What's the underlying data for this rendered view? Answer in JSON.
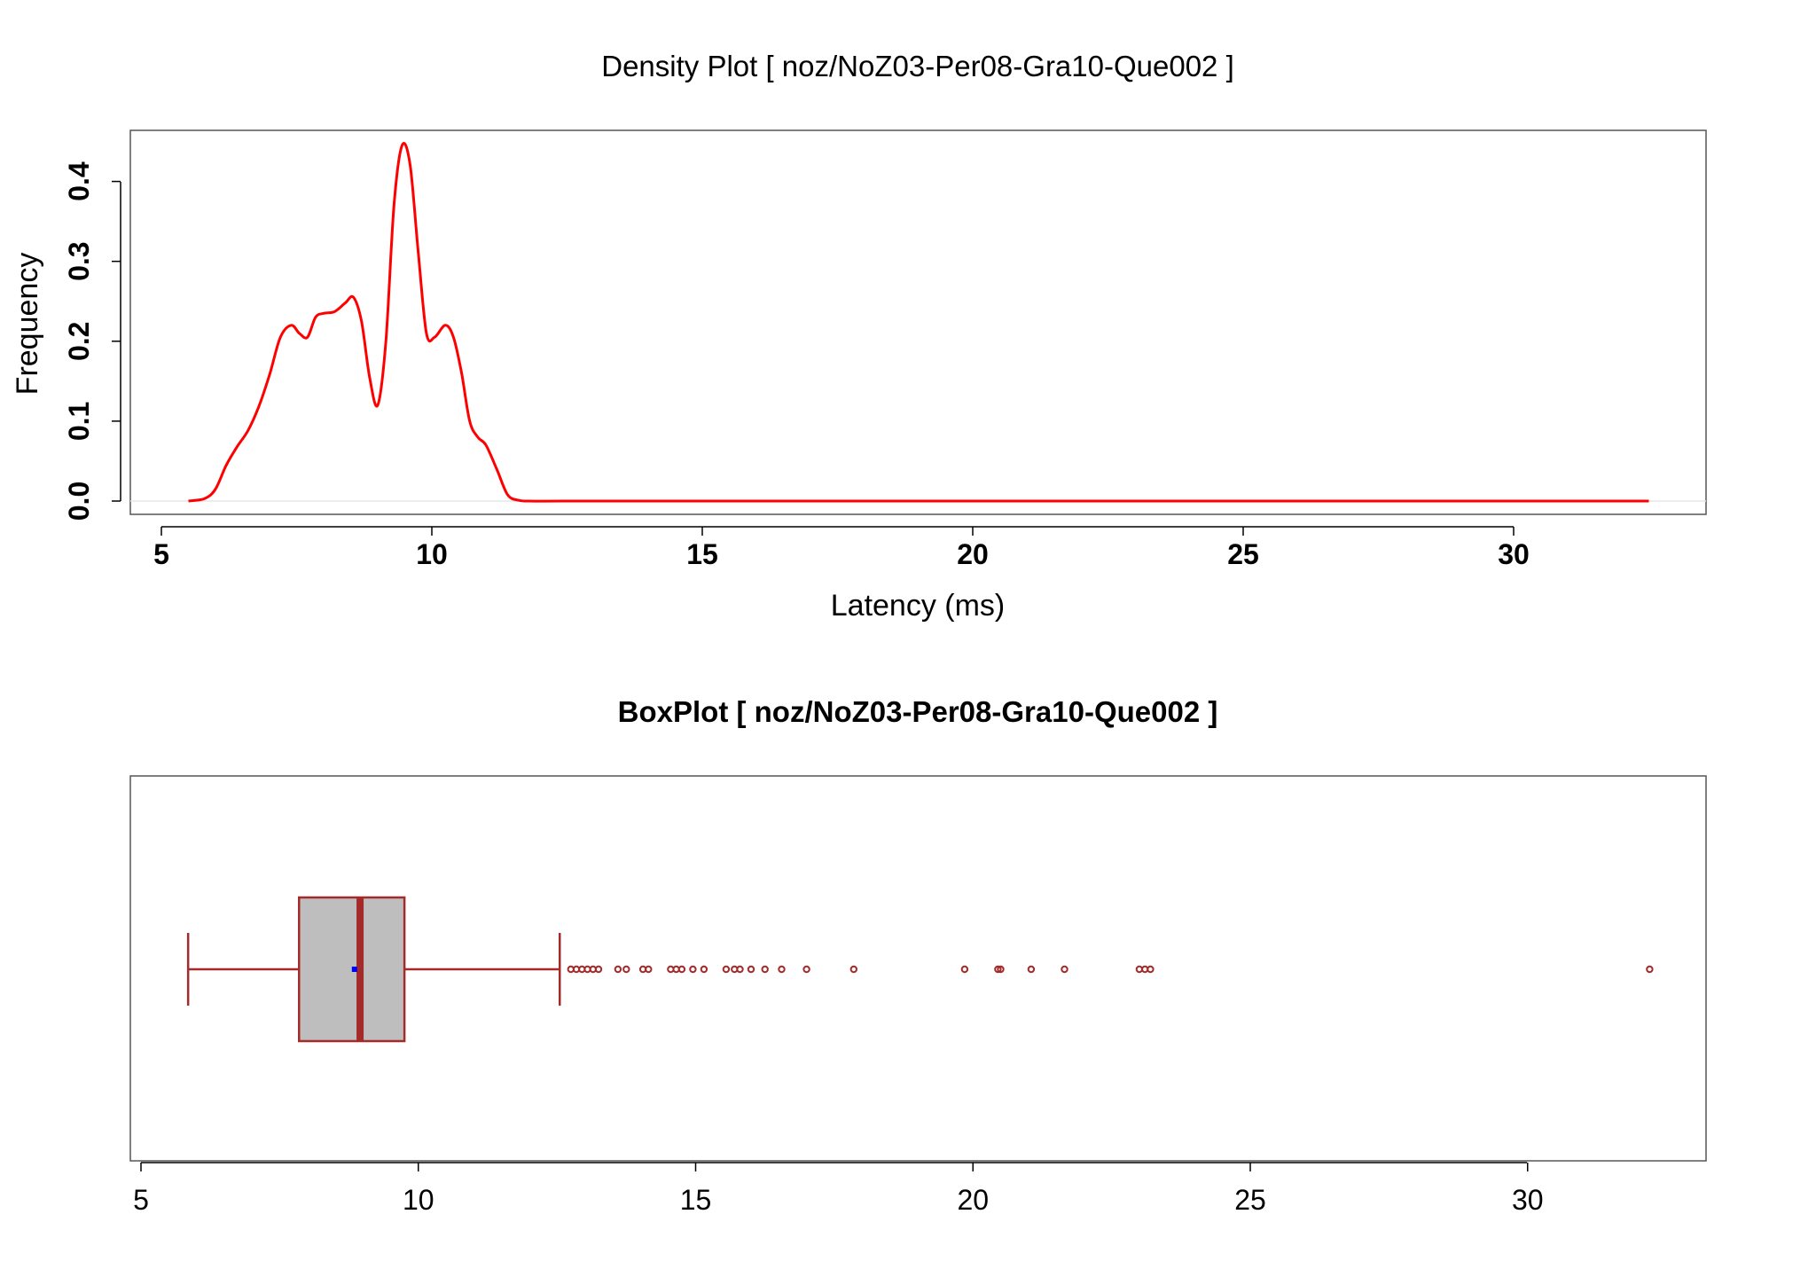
{
  "chart_data": [
    {
      "type": "line",
      "title": "Density Plot [ noz/NoZ03-Per08-Gra10-Que002 ]",
      "xlabel": "Latency (ms)",
      "ylabel": "Frequency",
      "xlim": [
        5,
        33
      ],
      "ylim": [
        0,
        0.45
      ],
      "x_ticks": [
        "5",
        "10",
        "15",
        "20",
        "25",
        "30"
      ],
      "y_ticks": [
        "0.0",
        "0.1",
        "0.2",
        "0.3",
        "0.4"
      ],
      "grid": false,
      "series": [
        {
          "color": "#ff0000",
          "x": [
            5.5,
            5.8,
            6.0,
            6.2,
            6.4,
            6.6,
            6.8,
            7.0,
            7.2,
            7.4,
            7.55,
            7.7,
            7.85,
            8.0,
            8.2,
            8.4,
            8.55,
            8.7,
            8.85,
            9.0,
            9.15,
            9.3,
            9.45,
            9.6,
            9.75,
            9.9,
            10.05,
            10.25,
            10.4,
            10.55,
            10.7,
            10.85,
            11.0,
            11.2,
            11.4,
            11.6,
            11.8,
            12.5,
            15,
            20,
            25,
            30,
            32.5
          ],
          "values": [
            0.0,
            0.003,
            0.015,
            0.045,
            0.068,
            0.088,
            0.118,
            0.158,
            0.205,
            0.22,
            0.21,
            0.205,
            0.23,
            0.235,
            0.237,
            0.248,
            0.255,
            0.225,
            0.155,
            0.12,
            0.2,
            0.37,
            0.445,
            0.42,
            0.31,
            0.21,
            0.205,
            0.22,
            0.205,
            0.16,
            0.1,
            0.08,
            0.07,
            0.04,
            0.008,
            0.001,
            0.0,
            0.0,
            0.0,
            0.0,
            0.0,
            0.0,
            0.0
          ]
        }
      ]
    },
    {
      "type": "box",
      "title": "BoxPlot [ noz/NoZ03-Per08-Gra10-Que002 ]",
      "xlim": [
        5,
        33
      ],
      "x_ticks": [
        "5",
        "10",
        "15",
        "20",
        "25",
        "30"
      ],
      "grid": false,
      "box": {
        "whisker_low": 5.85,
        "q1": 7.85,
        "median": 8.95,
        "q3": 9.75,
        "whisker_high": 12.55,
        "mean": 8.85
      },
      "fill_color": "#bebebe",
      "line_color": "#a52a2a",
      "mean_color": "#0000ff",
      "outliers": [
        12.75,
        12.85,
        12.95,
        13.05,
        13.15,
        13.25,
        13.6,
        13.75,
        14.05,
        14.15,
        14.55,
        14.65,
        14.75,
        14.95,
        15.15,
        15.55,
        15.7,
        15.8,
        16.0,
        16.25,
        16.55,
        17.0,
        17.85,
        19.85,
        20.45,
        20.5,
        21.05,
        21.65,
        23.0,
        23.1,
        23.2,
        32.2
      ]
    }
  ]
}
